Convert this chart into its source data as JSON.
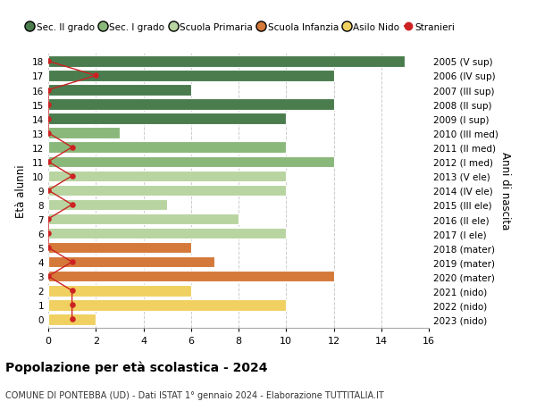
{
  "ages": [
    18,
    17,
    16,
    15,
    14,
    13,
    12,
    11,
    10,
    9,
    8,
    7,
    6,
    5,
    4,
    3,
    2,
    1,
    0
  ],
  "right_labels": [
    "2005 (V sup)",
    "2006 (IV sup)",
    "2007 (III sup)",
    "2008 (II sup)",
    "2009 (I sup)",
    "2010 (III med)",
    "2011 (II med)",
    "2012 (I med)",
    "2013 (V ele)",
    "2014 (IV ele)",
    "2015 (III ele)",
    "2016 (II ele)",
    "2017 (I ele)",
    "2018 (mater)",
    "2019 (mater)",
    "2020 (mater)",
    "2021 (nido)",
    "2022 (nido)",
    "2023 (nido)"
  ],
  "bar_values": [
    15,
    12,
    6,
    12,
    10,
    3,
    10,
    12,
    10,
    10,
    5,
    8,
    10,
    6,
    7,
    12,
    6,
    10,
    2
  ],
  "stranieri_values": [
    0,
    2,
    0,
    0,
    0,
    0,
    1,
    0,
    1,
    0,
    1,
    0,
    0,
    0,
    1,
    0,
    1,
    1,
    1
  ],
  "bar_colors": [
    "#4a7c4e",
    "#4a7c4e",
    "#4a7c4e",
    "#4a7c4e",
    "#4a7c4e",
    "#8ab87a",
    "#8ab87a",
    "#8ab87a",
    "#b8d4a0",
    "#b8d4a0",
    "#b8d4a0",
    "#b8d4a0",
    "#b8d4a0",
    "#d4793a",
    "#d4793a",
    "#d4793a",
    "#f0d060",
    "#f0d060",
    "#f0d060"
  ],
  "legend_labels": [
    "Sec. II grado",
    "Sec. I grado",
    "Scuola Primaria",
    "Scuola Infanzia",
    "Asilo Nido",
    "Stranieri"
  ],
  "legend_colors": [
    "#4a7c4e",
    "#8ab87a",
    "#b8d4a0",
    "#d4793a",
    "#f0d060",
    "#cc2222"
  ],
  "title": "Popolazione per età scolastica - 2024",
  "subtitle": "COMUNE DI PONTEBBA (UD) - Dati ISTAT 1° gennaio 2024 - Elaborazione TUTTITALIA.IT",
  "ylabel": "Età alunni",
  "right_ylabel": "Anni di nascita",
  "xlim": [
    0,
    16
  ],
  "xticks": [
    0,
    2,
    4,
    6,
    8,
    10,
    12,
    14,
    16
  ],
  "background_color": "#ffffff",
  "grid_color": "#cccccc",
  "stranieri_color": "#cc2222",
  "bar_edge_color": "#ffffff"
}
